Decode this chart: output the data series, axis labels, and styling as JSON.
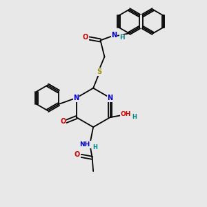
{
  "bg_color": "#e8e8e8",
  "atom_colors": {
    "C": "#000000",
    "N": "#0000cc",
    "O": "#cc0000",
    "S": "#999900",
    "H": "#008888"
  }
}
